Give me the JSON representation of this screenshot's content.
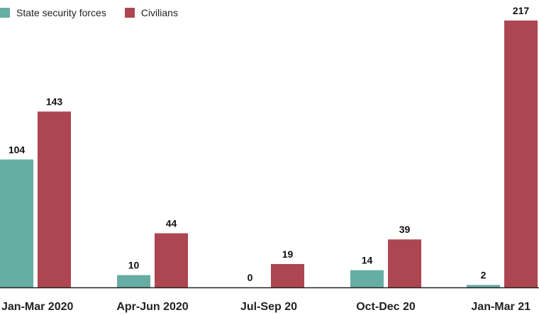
{
  "chart_data": {
    "type": "bar",
    "categories": [
      "Jan-Mar 2020",
      "Apr-Jun 2020",
      "Jul-Sep 20",
      "Oct-Dec 20",
      "Jan-Mar 21"
    ],
    "series": [
      {
        "name": "State security forces",
        "color": "#66ada3",
        "values": [
          104,
          10,
          0,
          14,
          2
        ]
      },
      {
        "name": "Civilians",
        "color": "#ad4650",
        "values": [
          143,
          44,
          19,
          39,
          217
        ]
      }
    ],
    "ylim": [
      0,
      217
    ],
    "grid": false,
    "legend_position": "top-left"
  }
}
